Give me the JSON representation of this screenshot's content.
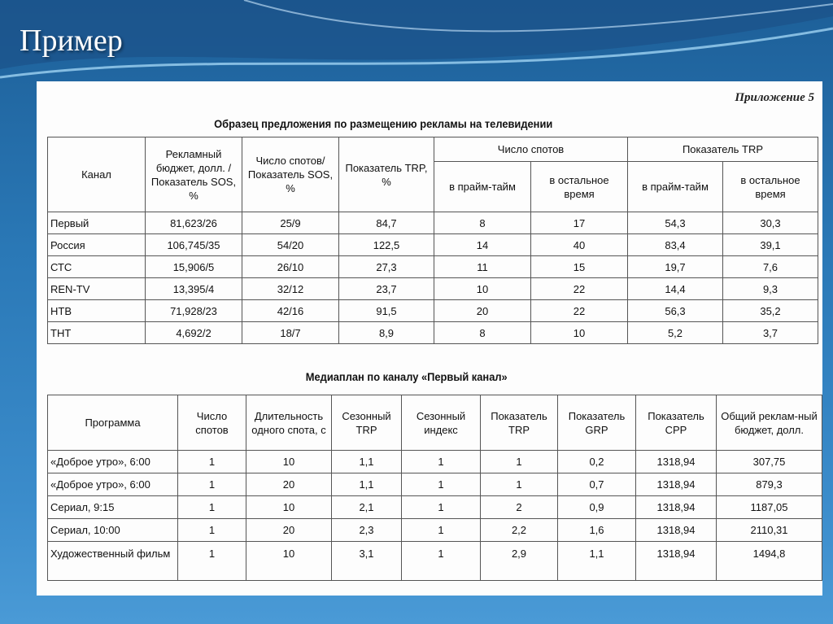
{
  "slide_title": "Пример",
  "appendix": "Приложение 5",
  "table1": {
    "caption": "Образец предложения по размещению рекламы на телевидении",
    "headers": [
      "Канал",
      "Рекламный бюджет, долл. /Показатель SOS, %",
      "Число спотов/ Показатель SOS, %",
      "Показатель TRP, %",
      "Число спотов",
      "Показатель TRP"
    ],
    "subheaders": [
      "в прайм-тайм",
      "в остальное время",
      "в прайм-тайм",
      "в остальное время"
    ],
    "rows": [
      [
        "Первый",
        "81,623/26",
        "25/9",
        "84,7",
        "8",
        "17",
        "54,3",
        "30,3"
      ],
      [
        "Россия",
        "106,745/35",
        "54/20",
        "122,5",
        "14",
        "40",
        "83,4",
        "39,1"
      ],
      [
        "СТС",
        "15,906/5",
        "26/10",
        "27,3",
        "11",
        "15",
        "19,7",
        "7,6"
      ],
      [
        "REN-TV",
        "13,395/4",
        "32/12",
        "23,7",
        "10",
        "22",
        "14,4",
        "9,3"
      ],
      [
        "НТВ",
        "71,928/23",
        "42/16",
        "91,5",
        "20",
        "22",
        "56,3",
        "35,2"
      ],
      [
        "ТНТ",
        "4,692/2",
        "18/7",
        "8,9",
        "8",
        "10",
        "5,2",
        "3,7"
      ]
    ]
  },
  "table2": {
    "caption": "Медиаплан по каналу «Первый канал»",
    "headers": [
      "Программа",
      "Число спотов",
      "Длительность одного спота, с",
      "Сезонный TRP",
      "Сезонный индекс",
      "Показатель TRP",
      "Показатель GRP",
      "Показатель CPP",
      "Общий реклам-ный бюджет, долл."
    ],
    "rows": [
      [
        "«Доброе утро», 6:00",
        "1",
        "10",
        "1,1",
        "1",
        "1",
        "0,2",
        "1318,94",
        "307,75"
      ],
      [
        "«Доброе утро», 6:00",
        "1",
        "20",
        "1,1",
        "1",
        "1",
        "0,7",
        "1318,94",
        "879,3"
      ],
      [
        "Сериал, 9:15",
        "1",
        "10",
        "2,1",
        "1",
        "2",
        "0,9",
        "1318,94",
        "1187,05"
      ],
      [
        "Сериал, 10:00",
        "1",
        "20",
        "2,3",
        "1",
        "2,2",
        "1,6",
        "1318,94",
        "2110,31"
      ],
      [
        "Художественный фильм",
        "1",
        "10",
        "3,1",
        "1",
        "2,9",
        "1,1",
        "1318,94",
        "1494,8"
      ]
    ]
  }
}
